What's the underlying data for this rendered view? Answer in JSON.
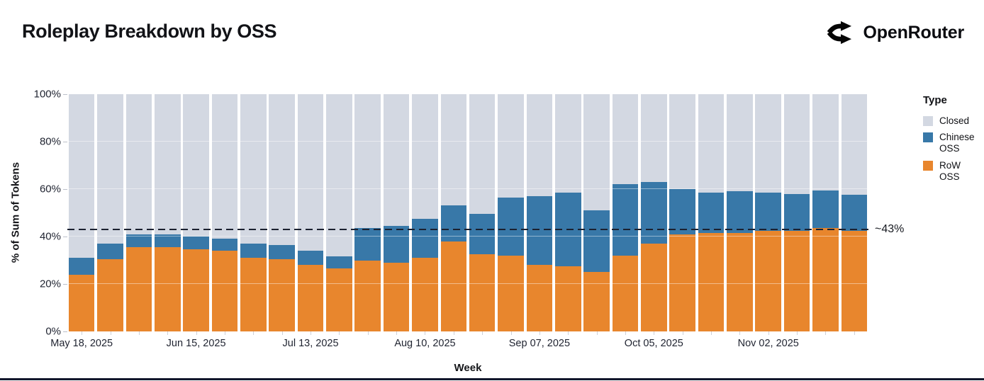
{
  "header": {
    "title": "Roleplay Breakdown by OSS",
    "brand": "OpenRouter"
  },
  "chart_data": {
    "type": "bar",
    "stacked": true,
    "normalized": "percent_of_total",
    "title": "Roleplay Breakdown by OSS",
    "xlabel": "Week",
    "ylabel": "% of Sum of Tokens",
    "ylim": [
      0,
      100
    ],
    "yticks": [
      {
        "value": 0,
        "label": "0%"
      },
      {
        "value": 20,
        "label": "20%"
      },
      {
        "value": 40,
        "label": "40%"
      },
      {
        "value": 60,
        "label": "60%"
      },
      {
        "value": 80,
        "label": "80%"
      },
      {
        "value": 100,
        "label": "100%"
      }
    ],
    "categories": [
      "May 18, 2025",
      "May 25, 2025",
      "Jun 01, 2025",
      "Jun 08, 2025",
      "Jun 15, 2025",
      "Jun 22, 2025",
      "Jun 29, 2025",
      "Jul 06, 2025",
      "Jul 13, 2025",
      "Jul 20, 2025",
      "Jul 27, 2025",
      "Aug 03, 2025",
      "Aug 10, 2025",
      "Aug 17, 2025",
      "Aug 24, 2025",
      "Aug 31, 2025",
      "Sep 07, 2025",
      "Sep 14, 2025",
      "Sep 21, 2025",
      "Sep 28, 2025",
      "Oct 05, 2025",
      "Oct 12, 2025",
      "Oct 19, 2025",
      "Oct 26, 2025",
      "Nov 02, 2025",
      "Nov 09, 2025",
      "Nov 16, 2025",
      "Nov 23, 2025"
    ],
    "xtick_label_every": 4,
    "xtick_labels_visible": [
      "May 18, 2025",
      "Jun 15, 2025",
      "Jul 13, 2025",
      "Aug 10, 2025",
      "Sep 07, 2025",
      "Oct 05, 2025",
      "Nov 02, 2025"
    ],
    "series": [
      {
        "name": "RoW OSS",
        "color": "#E8862D",
        "stack_order": 1,
        "values": [
          24,
          30.5,
          35.5,
          35.5,
          34.5,
          34,
          31,
          30.5,
          28,
          26.5,
          30,
          29,
          31,
          38,
          32.5,
          32,
          28,
          27.5,
          25,
          32,
          37,
          41,
          41.5,
          41.5,
          42.5,
          42.5,
          43.5,
          42.5
        ]
      },
      {
        "name": "Chinese OSS",
        "color": "#3878A8",
        "stack_order": 2,
        "values": [
          7,
          6.5,
          5.5,
          5.5,
          5.5,
          5,
          6,
          6,
          6,
          5,
          13.5,
          15.5,
          16.5,
          15,
          17,
          24.5,
          29,
          31,
          26,
          30,
          26,
          19,
          17,
          17.5,
          16,
          15.5,
          16,
          15
        ]
      },
      {
        "name": "Closed",
        "color": "#D3D8E2",
        "stack_order": 3,
        "values": [
          69,
          63,
          59,
          59,
          60,
          61,
          63,
          63.5,
          66,
          68.5,
          56.5,
          55.5,
          52.5,
          47,
          50.5,
          43.5,
          43,
          41.5,
          49,
          38,
          37,
          40,
          41.5,
          41,
          41.5,
          42,
          40.5,
          42.5
        ]
      }
    ],
    "legend": {
      "title": "Type",
      "position": "right",
      "entries": [
        {
          "label": "Closed",
          "color": "#D3D8E2"
        },
        {
          "label": "Chinese OSS",
          "color": "#3878A8"
        },
        {
          "label": "RoW OSS",
          "color": "#E8862D"
        }
      ]
    },
    "reference_line": {
      "value": 43,
      "label": "~43%",
      "style": "dashed",
      "color": "#1B2130"
    },
    "grid": "horizontal-subtle",
    "colors": {
      "row_oss": "#E8862D",
      "chinese_oss": "#3878A8",
      "closed": "#D3D8E2",
      "accent_rule": "#12162B"
    }
  }
}
